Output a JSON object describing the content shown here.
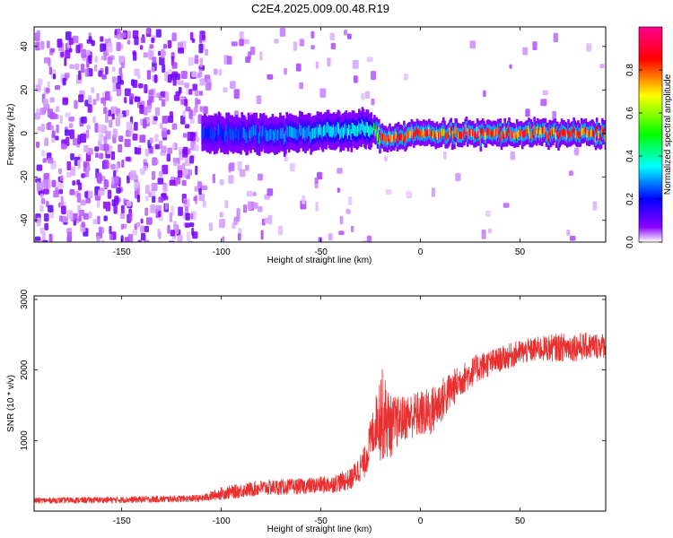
{
  "title": "C2E4.2025.009.00.48.R19",
  "colors": {
    "snr_line": "#e83030",
    "frame": "#000000"
  },
  "chart_data": [
    {
      "type": "heatmap",
      "xlabel": "Height of straight line (km)",
      "ylabel": "Frequency (Hz)",
      "xlim": [
        -194,
        93
      ],
      "ylim": [
        -50,
        49
      ],
      "xticks": [
        -150,
        -100,
        -50,
        0,
        50
      ],
      "xtick_labels": [
        "-150",
        "-100",
        "-50",
        "0",
        "50"
      ],
      "yticks": [
        -40,
        -20,
        0,
        20,
        40
      ],
      "ytick_labels": [
        "-40",
        "-20",
        "0",
        "20",
        "40"
      ],
      "colorbar": {
        "label": "Normalized spectral amplitude",
        "range": [
          0,
          1
        ],
        "ticks": [
          0.0,
          0.2,
          0.4,
          0.6,
          0.8
        ],
        "tick_labels": [
          "0.0",
          "0.2",
          "0.4",
          "0.6",
          "0.8"
        ],
        "colormap": [
          "#ffffff",
          "#8c00ff",
          "#0000ff",
          "#00ffff",
          "#00ff00",
          "#ffff00",
          "#ff0000",
          "#ff0090"
        ]
      },
      "signal_track": [
        {
          "x": -110,
          "freq": 0,
          "amp": 0.25
        },
        {
          "x": -70,
          "freq": 0,
          "amp": 0.3
        },
        {
          "x": -25,
          "freq": 2,
          "amp": 0.4
        },
        {
          "x": -20,
          "freq": -2,
          "amp": 0.85
        },
        {
          "x": 0,
          "freq": 0,
          "amp": 0.9
        },
        {
          "x": 50,
          "freq": 0,
          "amp": 0.9
        },
        {
          "x": 93,
          "freq": 0,
          "amp": 0.9
        }
      ],
      "noise_region": {
        "x_from": -194,
        "x_to": -110,
        "amp": 0.1
      }
    },
    {
      "type": "line",
      "xlabel": "Height of straight line (km)",
      "ylabel": "SNR (10 * v/v)",
      "xlim": [
        -194,
        93
      ],
      "ylim": [
        0,
        3050
      ],
      "xticks": [
        -150,
        -100,
        -50,
        0,
        50
      ],
      "xtick_labels": [
        "-150",
        "-100",
        "-50",
        "0",
        "50"
      ],
      "yticks": [
        1000,
        2000,
        3000
      ],
      "ytick_labels": [
        "1000",
        "2000",
        "3000"
      ],
      "series": [
        {
          "x": [
            -194,
            -150,
            -110,
            -100,
            -80,
            -60,
            -45,
            -35,
            -28,
            -22,
            -20,
            -15,
            -10,
            -5,
            5,
            10,
            20,
            30,
            40,
            50,
            60,
            70,
            80,
            93
          ],
          "mean": [
            150,
            160,
            180,
            250,
            330,
            350,
            380,
            450,
            700,
            1300,
            1400,
            1200,
            1300,
            1350,
            1400,
            1550,
            1850,
            2050,
            2150,
            2250,
            2300,
            2320,
            2330,
            2350
          ],
          "amp": [
            80,
            90,
            100,
            180,
            220,
            220,
            250,
            300,
            450,
            800,
            1400,
            900,
            650,
            650,
            700,
            650,
            450,
            400,
            350,
            350,
            350,
            400,
            400,
            350
          ]
        }
      ]
    }
  ]
}
